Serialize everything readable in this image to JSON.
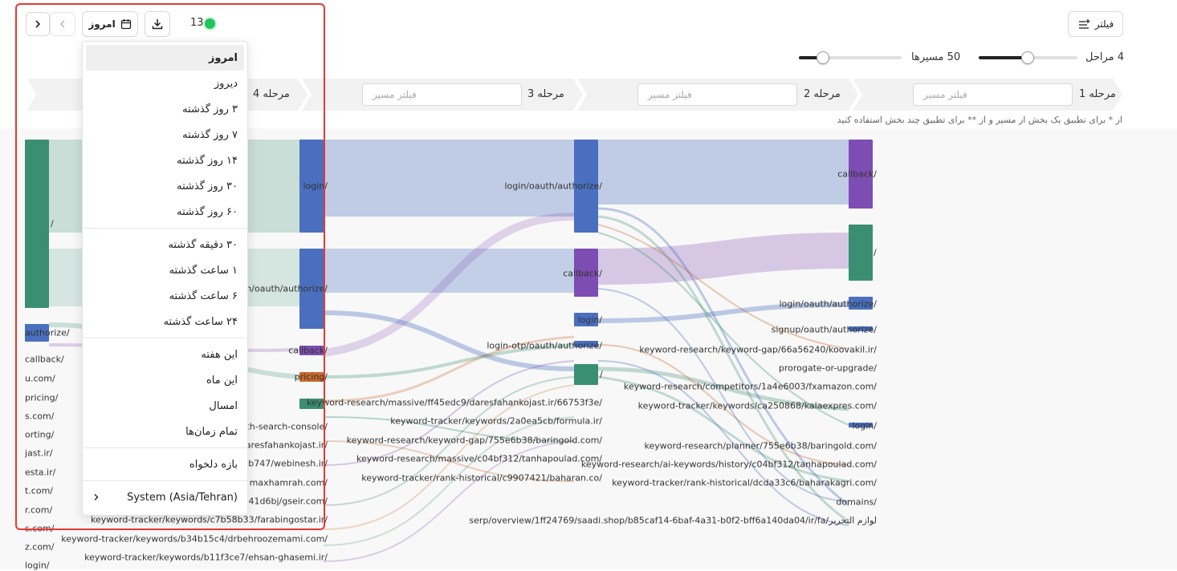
{
  "toolbar": {
    "count": "13",
    "status_color": "#22c55e",
    "date_button_label": "امروز",
    "filter_button_label": "فیلتر"
  },
  "controls": {
    "steps_label": "4 مراحل",
    "steps_level": 0.5,
    "paths_label": "50 مسیرها",
    "paths_level": 0.2
  },
  "steps": [
    {
      "label": "مرحله 1",
      "placeholder": "فیلتر مسیر"
    },
    {
      "label": "مرحله 2",
      "placeholder": "فیلتر مسیر"
    },
    {
      "label": "مرحله 3",
      "placeholder": "فیلتر مسیر"
    },
    {
      "label": "مرحله 4"
    }
  ],
  "hint": "از * برای تطبیق یک بخش از مسیر و از ** برای تطبیق چند بخش استفاده کنید",
  "sankey": {
    "col1_labels": [
      "/",
      "authorize/",
      "callback/",
      "u.com/",
      "pricing/",
      "s.com/",
      "orting/",
      "jast.ir/",
      "esta.ir/",
      "t.com/",
      "r.com/",
      "s.com/",
      "z.com/",
      "login/"
    ],
    "col2_labels": [
      "login/",
      "login/oauth/authorize/",
      "callback/",
      "pricing/",
      "keyword-research/massive/ff45edc9/daresfahankojast.ir/66753f3e/",
      "oauth-search-console/",
      "keyword-tracker/keywords/2a0ea5cb/formula.ir/",
      "daresfahankojast.ir/",
      "keyword-research/keyword-gap/755e6b38/baringold.com/",
      "3b747/webinesh.ir/",
      "keyword-research/massive/c04bf312/tanhapoulad.com/",
      "maxhamrah.com/",
      "keyword-tracker/rank-historical/c9907421/baharan.co/",
      "941d6bj/gseir.com/",
      "keyword-tracker/keywords/c7b58b33/farabingostar.ir/",
      "keyword-tracker/keywords/b34b15c4/drbehroozemami.com/",
      "keyword-tracker/keywords/b11f3ce7/ehsan-ghasemi.ir/"
    ],
    "col3_labels": [
      "login/oauth/authorize/",
      "callback/",
      "login/",
      "login-otp/oauth/authorize/",
      "/"
    ],
    "col4_labels": [
      "callback/",
      "/",
      "login/oauth/authorize/",
      "signup/oauth/authorize/",
      "keyword-research/keyword-gap/66a56240/koovakil.ir/",
      "prorogate-or-upgrade/",
      "keyword-research/competitors/1a4e6003/fxamazon.com/",
      "keyword-tracker/keywords/ca250868/kalaexpres.com/",
      "login/",
      "keyword-research/planner/755e6b38/baringold.com/",
      "keyword-research/ai-keywords/history/c04bf312/tanhapoulad.com/",
      "keyword-tracker/rank-historical/dcda33c6/baharakagri.com/",
      "domains/",
      "serp/overview/1ff24769/saadi.shop/b85caf14-6baf-4a31-b0f2-bff6a140da04/ir/fa/لوازم التحریر"
    ]
  },
  "colors": {
    "green": "#3a8f72",
    "blue": "#4a6fbf",
    "purple": "#7e4db3",
    "orange": "#c96a2c",
    "highlight": "#e53935"
  },
  "dropdown": {
    "groups": [
      [
        "امروز",
        "دیروز",
        "۳ روز گذشته",
        "۷ روز گذشته",
        "۱۴ روز گذشته",
        "۳۰ روز گذشته",
        "۶۰ روز گذشته"
      ],
      [
        "۳۰ دقیقه گذشته",
        "۱ ساعت گذشته",
        "۶ ساعت گذشته",
        "۲۴ ساعت گذشته"
      ],
      [
        "این هفته",
        "این ماه",
        "امسال",
        "تمام زمان‌ها"
      ],
      [
        "بازه دلخواه"
      ]
    ],
    "timezone": "System (Asia/Tehran)"
  }
}
